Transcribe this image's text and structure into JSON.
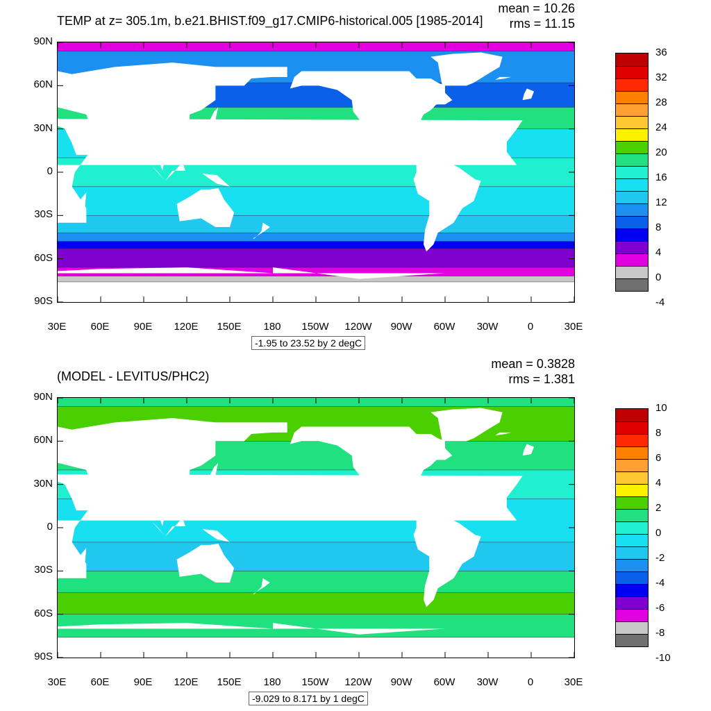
{
  "panels": [
    {
      "title": "TEMP at z= 305.1m, b.e21.BHIST.f09_g17.CMIP6-historical.005 [1985-2014]",
      "mean": "mean = 10.26",
      "rms": "rms = 11.15",
      "range": "-1.95 to 23.52 by 2 degC",
      "colorbar": {
        "labels": [
          "36",
          "32",
          "28",
          "24",
          "20",
          "16",
          "12",
          "8",
          "4",
          "0",
          "-4"
        ],
        "colors": [
          "#c00000",
          "#e00000",
          "#ff2a00",
          "#ff8000",
          "#ffa030",
          "#ffc830",
          "#fff000",
          "#4ad000",
          "#20e080",
          "#20f0d0",
          "#18e0f0",
          "#20c8f0",
          "#1c90f0",
          "#0a60e8",
          "#0000f0",
          "#8000d0",
          "#e000e0",
          "#c8c8c8",
          "#707070"
        ],
        "min": -4,
        "max": 36,
        "step": 2
      },
      "map_bands": [
        {
          "lat": [
            84,
            90
          ],
          "color": "#e000e0"
        },
        {
          "lat": [
            62,
            84
          ],
          "color": "#1c90f0"
        },
        {
          "lat": [
            45,
            62
          ],
          "color": "#0a60e8"
        },
        {
          "lat": [
            30,
            45
          ],
          "color": "#20e080"
        },
        {
          "lat": [
            10,
            30
          ],
          "color": "#18e0f0"
        },
        {
          "lat": [
            -10,
            10
          ],
          "color": "#20f0d0"
        },
        {
          "lat": [
            -30,
            -10
          ],
          "color": "#18e0f0"
        },
        {
          "lat": [
            -42,
            -30
          ],
          "color": "#20c8f0"
        },
        {
          "lat": [
            -48,
            -42
          ],
          "color": "#1c90f0"
        },
        {
          "lat": [
            -53,
            -48
          ],
          "color": "#0000f0"
        },
        {
          "lat": [
            -66,
            -53
          ],
          "color": "#8000d0"
        },
        {
          "lat": [
            -72,
            -66
          ],
          "color": "#e000e0"
        },
        {
          "lat": [
            -76,
            -72
          ],
          "color": "#c8c8c8"
        }
      ]
    },
    {
      "title": "(MODEL - LEVITUS/PHC2)",
      "mean": "mean = 0.3828",
      "rms": "rms = 1.381",
      "range": "-9.029 to 8.171 by 1 degC",
      "colorbar": {
        "labels": [
          "10",
          "8",
          "6",
          "4",
          "2",
          "0",
          "-2",
          "-4",
          "-6",
          "-8",
          "-10"
        ],
        "colors": [
          "#c00000",
          "#e00000",
          "#ff2a00",
          "#ff8000",
          "#ffa030",
          "#ffc830",
          "#fff000",
          "#4ad000",
          "#20e080",
          "#20f0d0",
          "#18e0f0",
          "#20c8f0",
          "#1c90f0",
          "#0a60e8",
          "#0000f0",
          "#8000d0",
          "#e000e0",
          "#c8c8c8",
          "#707070"
        ],
        "min": -10,
        "max": 10,
        "step": 1
      },
      "map_bands": [
        {
          "lat": [
            84,
            90
          ],
          "color": "#20e080"
        },
        {
          "lat": [
            60,
            84
          ],
          "color": "#4ad000"
        },
        {
          "lat": [
            40,
            60
          ],
          "color": "#20e080"
        },
        {
          "lat": [
            20,
            40
          ],
          "color": "#20f0d0"
        },
        {
          "lat": [
            -10,
            20
          ],
          "color": "#18e0f0"
        },
        {
          "lat": [
            -30,
            -10
          ],
          "color": "#20c8f0"
        },
        {
          "lat": [
            -45,
            -30
          ],
          "color": "#20e080"
        },
        {
          "lat": [
            -60,
            -45
          ],
          "color": "#4ad000"
        },
        {
          "lat": [
            -76,
            -60
          ],
          "color": "#20e080"
        }
      ]
    }
  ],
  "axes": {
    "lat_labels": [
      "90N",
      "60N",
      "30N",
      "0",
      "30S",
      "60S",
      "90S"
    ],
    "lat_values": [
      90,
      60,
      30,
      0,
      -30,
      -60,
      -90
    ],
    "lon_labels": [
      "30E",
      "60E",
      "90E",
      "120E",
      "150E",
      "180",
      "150W",
      "120W",
      "90W",
      "60W",
      "30W",
      "0",
      "30E"
    ],
    "lon_values": [
      30,
      60,
      90,
      120,
      150,
      180,
      210,
      240,
      270,
      300,
      330,
      360,
      390
    ]
  },
  "land": [
    [
      [
        50,
        -35
      ],
      [
        20,
        -35
      ],
      [
        15,
        -28
      ],
      [
        10,
        -10
      ],
      [
        10,
        5
      ],
      [
        5,
        5
      ],
      [
        -10,
        5
      ],
      [
        -17,
        14
      ],
      [
        -17,
        21
      ],
      [
        -10,
        30
      ],
      [
        -6,
        36
      ],
      [
        10,
        37
      ],
      [
        30,
        32
      ],
      [
        35,
        30
      ],
      [
        40,
        20
      ],
      [
        43,
        12
      ],
      [
        51,
        12
      ],
      [
        42,
        0
      ],
      [
        40,
        -10
      ],
      [
        50,
        -25
      ]
    ],
    [
      [
        45,
        -20
      ],
      [
        50,
        -14
      ],
      [
        49,
        -25
      ],
      [
        44,
        -24
      ]
    ],
    [
      [
        30,
        45
      ],
      [
        50,
        40
      ],
      [
        55,
        25
      ],
      [
        60,
        25
      ],
      [
        75,
        20
      ],
      [
        80,
        8
      ],
      [
        88,
        22
      ],
      [
        95,
        18
      ],
      [
        100,
        10
      ],
      [
        103,
        1
      ],
      [
        105,
        10
      ],
      [
        110,
        20
      ],
      [
        122,
        30
      ],
      [
        122,
        40
      ],
      [
        130,
        43
      ],
      [
        140,
        50
      ],
      [
        140,
        60
      ],
      [
        160,
        60
      ],
      [
        165,
        65
      ],
      [
        180,
        66
      ],
      [
        190,
        66
      ],
      [
        190,
        73
      ],
      [
        140,
        73
      ],
      [
        110,
        76
      ],
      [
        70,
        73
      ],
      [
        40,
        68
      ],
      [
        30,
        70
      ]
    ],
    [
      [
        113,
        -22
      ],
      [
        115,
        -34
      ],
      [
        130,
        -32
      ],
      [
        140,
        -38
      ],
      [
        150,
        -38
      ],
      [
        153,
        -28
      ],
      [
        146,
        -19
      ],
      [
        142,
        -11
      ],
      [
        136,
        -12
      ],
      [
        130,
        -12
      ],
      [
        122,
        -17
      ]
    ],
    [
      [
        131,
        33
      ],
      [
        135,
        35
      ],
      [
        140,
        36
      ],
      [
        141,
        41
      ],
      [
        142,
        45
      ],
      [
        139,
        42
      ],
      [
        135,
        34
      ]
    ],
    [
      [
        95,
        5
      ],
      [
        105,
        -6
      ],
      [
        110,
        1
      ],
      [
        119,
        1
      ],
      [
        117,
        7
      ],
      [
        110,
        -1
      ],
      [
        105,
        -6
      ],
      [
        100,
        0
      ]
    ],
    [
      [
        131,
        -1
      ],
      [
        141,
        -2
      ],
      [
        150,
        -10
      ],
      [
        141,
        -8
      ],
      [
        135,
        -4
      ]
    ],
    [
      [
        166,
        -46
      ],
      [
        174,
        -41
      ],
      [
        178,
        -38
      ],
      [
        173,
        -35
      ],
      [
        172,
        -41
      ],
      [
        167,
        -46
      ]
    ],
    [
      [
        192,
        58
      ],
      [
        200,
        60
      ],
      [
        212,
        60
      ],
      [
        225,
        57
      ],
      [
        235,
        50
      ],
      [
        236,
        42
      ],
      [
        243,
        33
      ],
      [
        250,
        23
      ],
      [
        255,
        19
      ],
      [
        265,
        18
      ],
      [
        270,
        15
      ],
      [
        275,
        10
      ],
      [
        278,
        8
      ],
      [
        282,
        8
      ],
      [
        283,
        11
      ],
      [
        277,
        17
      ],
      [
        270,
        21
      ],
      [
        262,
        21
      ],
      [
        262,
        28
      ],
      [
        270,
        30
      ],
      [
        276,
        30
      ],
      [
        279,
        26
      ],
      [
        280,
        30
      ],
      [
        285,
        40
      ],
      [
        290,
        43
      ],
      [
        294,
        47
      ],
      [
        300,
        47
      ],
      [
        305,
        50
      ],
      [
        300,
        55
      ],
      [
        300,
        60
      ],
      [
        295,
        62
      ],
      [
        290,
        65
      ],
      [
        280,
        65
      ],
      [
        275,
        70
      ],
      [
        270,
        70
      ],
      [
        250,
        70
      ],
      [
        240,
        70
      ],
      [
        220,
        70
      ],
      [
        200,
        70
      ],
      [
        195,
        66
      ]
    ],
    [
      [
        280,
        8
      ],
      [
        285,
        10
      ],
      [
        300,
        8
      ],
      [
        310,
        3
      ],
      [
        321,
        -5
      ],
      [
        325,
        -6
      ],
      [
        320,
        -20
      ],
      [
        312,
        -25
      ],
      [
        306,
        -35
      ],
      [
        295,
        -42
      ],
      [
        292,
        -50
      ],
      [
        287,
        -55
      ],
      [
        285,
        -50
      ],
      [
        286,
        -40
      ],
      [
        289,
        -30
      ],
      [
        289,
        -20
      ],
      [
        281,
        -15
      ],
      [
        278,
        -5
      ],
      [
        280,
        0
      ]
    ],
    [
      [
        298,
        60
      ],
      [
        315,
        60
      ],
      [
        320,
        62
      ],
      [
        333,
        70
      ],
      [
        338,
        73
      ],
      [
        340,
        80
      ],
      [
        325,
        83
      ],
      [
        305,
        82
      ],
      [
        290,
        80
      ],
      [
        295,
        76
      ]
    ],
    [
      [
        335,
        64
      ],
      [
        342,
        65
      ],
      [
        346,
        66
      ],
      [
        338,
        66
      ]
    ],
    [
      [
        -6,
        50
      ],
      [
        0,
        51
      ],
      [
        2,
        56
      ],
      [
        -3,
        58
      ],
      [
        -5,
        54
      ]
    ],
    [
      [
        -180,
        -72
      ],
      [
        180,
        -72
      ],
      [
        180,
        -90
      ],
      [
        -180,
        -90
      ]
    ],
    [
      [
        -180,
        -66
      ],
      [
        -120,
        -74
      ],
      [
        -60,
        -70
      ],
      [
        0,
        -70
      ],
      [
        60,
        -67
      ],
      [
        120,
        -66
      ],
      [
        180,
        -70
      ],
      [
        180,
        -90
      ],
      [
        -180,
        -90
      ]
    ]
  ]
}
